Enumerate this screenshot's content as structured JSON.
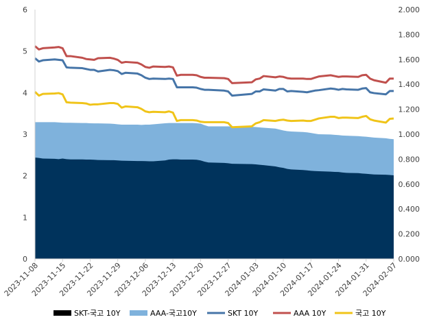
{
  "chart_data": {
    "type": "area",
    "title": "",
    "x": [
      "2023-11-08",
      "2023-11-09",
      "2023-11-10",
      "2023-11-13",
      "2023-11-14",
      "2023-11-15",
      "2023-11-16",
      "2023-11-17",
      "2023-11-20",
      "2023-11-21",
      "2023-11-22",
      "2023-11-23",
      "2023-11-24",
      "2023-11-27",
      "2023-11-28",
      "2023-11-29",
      "2023-11-30",
      "2023-12-01",
      "2023-12-04",
      "2023-12-05",
      "2023-12-06",
      "2023-12-07",
      "2023-12-08",
      "2023-12-11",
      "2023-12-12",
      "2023-12-13",
      "2023-12-14",
      "2023-12-15",
      "2023-12-18",
      "2023-12-19",
      "2023-12-20",
      "2023-12-21",
      "2023-12-22",
      "2023-12-26",
      "2023-12-27",
      "2023-12-28",
      "2024-01-02",
      "2024-01-03",
      "2024-01-04",
      "2024-01-05",
      "2024-01-08",
      "2024-01-09",
      "2024-01-10",
      "2024-01-11",
      "2024-01-12",
      "2024-01-15",
      "2024-01-16",
      "2024-01-17",
      "2024-01-18",
      "2024-01-19",
      "2024-01-22",
      "2024-01-23",
      "2024-01-24",
      "2024-01-25",
      "2024-01-26",
      "2024-01-29",
      "2024-01-30",
      "2024-01-31",
      "2024-02-01",
      "2024-02-02",
      "2024-02-05",
      "2024-02-06",
      "2024-02-07"
    ],
    "x_tick_labels": [
      "2023-11-08",
      "2023-11-15",
      "2023-11-22",
      "2023-11-29",
      "2023-12-06",
      "2023-12-13",
      "2023-12-20",
      "2023-12-27",
      "2024-01-03",
      "2024-01-10",
      "2024-01-17",
      "2024-01-24",
      "2024-01-31",
      "2024-02-07"
    ],
    "y_left": {
      "range": [
        0,
        6
      ],
      "ticks": [
        "0",
        "1",
        "2",
        "3",
        "4",
        "5",
        "6"
      ]
    },
    "y_right": {
      "range": [
        0,
        2
      ],
      "ticks": [
        "0.000",
        "0.200",
        "0.400",
        "0.600",
        "0.800",
        "1.000",
        "1.200",
        "1.400",
        "1.600",
        "1.800",
        "2.000"
      ]
    },
    "series": [
      {
        "name": "SKT-국고 10Y",
        "kind": "area",
        "axis": "right",
        "color": "#00335c",
        "values": [
          0.813,
          0.81,
          0.805,
          0.803,
          0.8,
          0.805,
          0.8,
          0.798,
          0.798,
          0.797,
          0.797,
          0.795,
          0.793,
          0.792,
          0.792,
          0.79,
          0.788,
          0.787,
          0.785,
          0.785,
          0.784,
          0.783,
          0.783,
          0.79,
          0.797,
          0.799,
          0.799,
          0.797,
          0.797,
          0.795,
          0.79,
          0.78,
          0.773,
          0.77,
          0.767,
          0.763,
          0.76,
          0.758,
          0.755,
          0.752,
          0.742,
          0.735,
          0.73,
          0.722,
          0.718,
          0.713,
          0.71,
          0.707,
          0.705,
          0.703,
          0.7,
          0.698,
          0.697,
          0.693,
          0.69,
          0.688,
          0.685,
          0.683,
          0.68,
          0.677,
          0.675,
          0.673,
          0.67
        ]
      },
      {
        "name": "AAA-국고10Y",
        "kind": "area",
        "axis": "right",
        "color": "#7fb2dc",
        "values": [
          1.097,
          1.097,
          1.097,
          1.097,
          1.095,
          1.093,
          1.092,
          1.092,
          1.09,
          1.09,
          1.088,
          1.087,
          1.087,
          1.085,
          1.083,
          1.08,
          1.077,
          1.077,
          1.077,
          1.075,
          1.077,
          1.077,
          1.08,
          1.088,
          1.09,
          1.09,
          1.09,
          1.09,
          1.09,
          1.088,
          1.085,
          1.073,
          1.063,
          1.063,
          1.063,
          1.062,
          1.06,
          1.058,
          1.055,
          1.052,
          1.045,
          1.038,
          1.03,
          1.025,
          1.022,
          1.018,
          1.015,
          1.01,
          1.005,
          1.0,
          0.998,
          0.995,
          0.993,
          0.99,
          0.988,
          0.985,
          0.982,
          0.98,
          0.977,
          0.973,
          0.968,
          0.963,
          0.96
        ]
      },
      {
        "name": "SKT 10Y",
        "kind": "line",
        "axis": "left",
        "color": "#4675a8",
        "values": [
          4.83,
          4.75,
          4.78,
          4.8,
          4.79,
          4.78,
          4.61,
          4.6,
          4.59,
          4.57,
          4.55,
          4.55,
          4.51,
          4.55,
          4.54,
          4.52,
          4.45,
          4.48,
          4.46,
          4.42,
          4.36,
          4.33,
          4.34,
          4.33,
          4.34,
          4.33,
          4.13,
          4.13,
          4.13,
          4.12,
          4.09,
          4.07,
          4.07,
          4.05,
          4.03,
          3.93,
          3.97,
          4.03,
          4.03,
          4.08,
          4.05,
          4.09,
          4.09,
          4.03,
          4.04,
          4.02,
          4.01,
          4.03,
          4.05,
          4.06,
          4.1,
          4.09,
          4.07,
          4.09,
          4.08,
          4.07,
          4.1,
          4.11,
          4.01,
          3.99,
          3.96,
          4.04,
          4.04
        ]
      },
      {
        "name": "AAA 10Y",
        "kind": "line",
        "axis": "left",
        "color": "#c0504d",
        "values": [
          5.12,
          5.04,
          5.07,
          5.09,
          5.1,
          5.07,
          4.88,
          4.88,
          4.84,
          4.81,
          4.8,
          4.79,
          4.83,
          4.84,
          4.82,
          4.79,
          4.72,
          4.74,
          4.72,
          4.68,
          4.62,
          4.6,
          4.63,
          4.62,
          4.63,
          4.61,
          4.41,
          4.43,
          4.43,
          4.42,
          4.38,
          4.36,
          4.36,
          4.35,
          4.33,
          4.23,
          4.25,
          4.32,
          4.34,
          4.4,
          4.37,
          4.39,
          4.38,
          4.35,
          4.34,
          4.34,
          4.33,
          4.33,
          4.36,
          4.39,
          4.42,
          4.4,
          4.38,
          4.39,
          4.39,
          4.38,
          4.42,
          4.43,
          4.34,
          4.3,
          4.24,
          4.34,
          4.34
        ]
      },
      {
        "name": "국고 10Y",
        "kind": "line",
        "axis": "left",
        "color": "#f0c419",
        "values": [
          4.02,
          3.93,
          3.97,
          3.98,
          3.99,
          3.96,
          3.77,
          3.76,
          3.75,
          3.74,
          3.71,
          3.72,
          3.72,
          3.75,
          3.75,
          3.73,
          3.64,
          3.67,
          3.65,
          3.61,
          3.55,
          3.53,
          3.54,
          3.53,
          3.55,
          3.52,
          3.32,
          3.34,
          3.34,
          3.33,
          3.3,
          3.29,
          3.29,
          3.29,
          3.27,
          3.17,
          3.19,
          3.26,
          3.29,
          3.34,
          3.32,
          3.34,
          3.35,
          3.33,
          3.32,
          3.33,
          3.32,
          3.32,
          3.35,
          3.38,
          3.42,
          3.42,
          3.39,
          3.4,
          3.4,
          3.39,
          3.42,
          3.44,
          3.36,
          3.33,
          3.28,
          3.37,
          3.38
        ]
      }
    ],
    "legend": {
      "position": "bottom",
      "items": [
        {
          "label": "SKT-국고 10Y",
          "color": "#000000",
          "kind": "area"
        },
        {
          "label": "AAA-국고10Y",
          "color": "#7fb2dc",
          "kind": "area"
        },
        {
          "label": "SKT 10Y",
          "color": "#4675a8",
          "kind": "line"
        },
        {
          "label": "AAA 10Y",
          "color": "#c0504d",
          "kind": "line"
        },
        {
          "label": "국고 10Y",
          "color": "#f0c419",
          "kind": "line"
        }
      ]
    },
    "grid": false
  }
}
